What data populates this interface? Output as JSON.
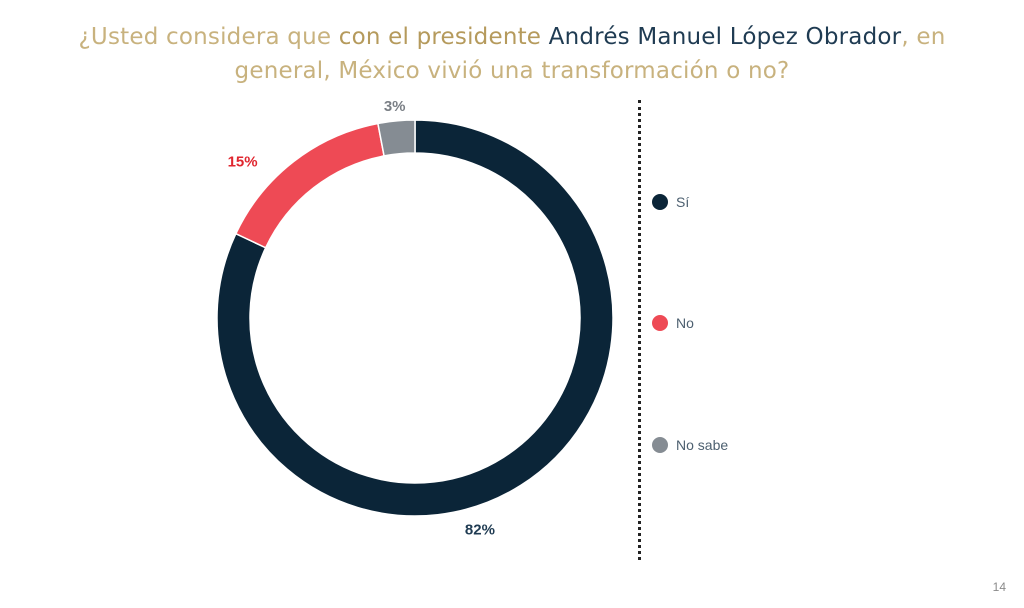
{
  "question": {
    "part1": "¿Usted considera  que ",
    "part2": "con el presidente ",
    "part3": "Andrés Manuel López Obrador",
    "part4": ", en",
    "line2": "general,  México vivió una transformación o no?"
  },
  "chart_data": {
    "type": "pie",
    "donut": true,
    "categories": [
      "Sí",
      "No",
      "No sabe"
    ],
    "values": [
      82,
      15,
      3
    ],
    "labels": [
      "82%",
      "15%",
      "3%"
    ],
    "colors": [
      "#0b2538",
      "#ee4a55",
      "#858c93"
    ],
    "label_colors": [
      "#1f3b52",
      "#e0262f",
      "#7a7f85"
    ],
    "legend_position": "right"
  },
  "legend": {
    "items": [
      {
        "label": "Sí",
        "color": "#0b2538"
      },
      {
        "label": "No",
        "color": "#ee4a55"
      },
      {
        "label": "No sabe",
        "color": "#858c93"
      }
    ]
  },
  "page_number": "14"
}
